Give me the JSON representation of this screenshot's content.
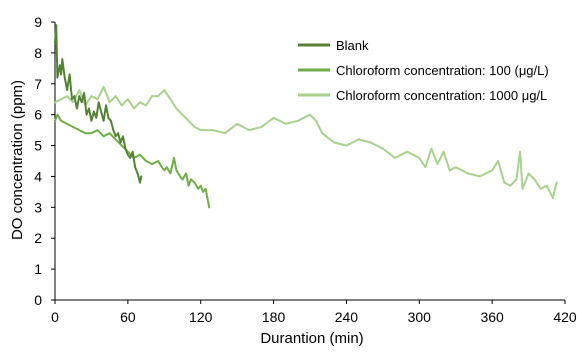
{
  "chart_data": {
    "type": "line",
    "xlabel": "Durantion (min)",
    "ylabel": "DO concentration (ppm)",
    "xlim": [
      0,
      420
    ],
    "ylim": [
      0,
      9
    ],
    "xticks": [
      0,
      60,
      120,
      180,
      240,
      300,
      360,
      420
    ],
    "yticks": [
      0,
      1,
      2,
      3,
      4,
      5,
      6,
      7,
      8,
      9
    ],
    "grid": false,
    "legend_position": "top-right",
    "series": [
      {
        "name": "Blank",
        "color": "#548235",
        "x": [
          0,
          1,
          2,
          3,
          4,
          5,
          6,
          7,
          8,
          10,
          12,
          14,
          16,
          18,
          20,
          22,
          24,
          26,
          28,
          30,
          32,
          34,
          36,
          38,
          40,
          42,
          44,
          46,
          48,
          50,
          52,
          54,
          56,
          58,
          60,
          62,
          64,
          66,
          68,
          70,
          71
        ],
        "y": [
          8.3,
          8.9,
          7.2,
          7.4,
          7.6,
          7.3,
          7.8,
          7.5,
          7.2,
          6.8,
          7.3,
          6.5,
          6.6,
          6.2,
          6.6,
          6.4,
          6.7,
          6.0,
          6.2,
          5.8,
          6.1,
          5.9,
          6.4,
          6.1,
          5.8,
          6.3,
          5.9,
          5.8,
          5.5,
          5.3,
          5.4,
          5.1,
          5.3,
          4.9,
          4.7,
          4.6,
          4.8,
          4.3,
          4.1,
          3.8,
          4.0
        ]
      },
      {
        "name": "Chloroform concentration: 100 (μg/L)",
        "color": "#70AD47",
        "x": [
          0,
          2,
          5,
          10,
          15,
          20,
          25,
          30,
          35,
          40,
          45,
          50,
          55,
          60,
          65,
          70,
          75,
          80,
          85,
          88,
          90,
          92,
          95,
          98,
          100,
          103,
          105,
          108,
          110,
          112,
          115,
          118,
          120,
          122,
          124,
          126,
          127
        ],
        "y": [
          5.8,
          6.0,
          5.8,
          5.7,
          5.6,
          5.5,
          5.4,
          5.4,
          5.5,
          5.3,
          5.4,
          5.2,
          5.0,
          4.8,
          4.6,
          4.7,
          4.5,
          4.4,
          4.5,
          4.3,
          4.2,
          4.3,
          4.1,
          4.6,
          4.2,
          4.0,
          3.9,
          4.1,
          3.7,
          3.9,
          3.8,
          3.6,
          3.7,
          3.5,
          3.6,
          3.2,
          3.0
        ]
      },
      {
        "name": "Chloroform concentration: 1000 μg/L",
        "color": "#A9D18E",
        "x": [
          0,
          5,
          10,
          15,
          20,
          25,
          30,
          35,
          40,
          45,
          50,
          55,
          60,
          65,
          70,
          75,
          80,
          85,
          90,
          95,
          100,
          105,
          110,
          115,
          120,
          130,
          140,
          150,
          160,
          170,
          180,
          190,
          200,
          210,
          215,
          220,
          230,
          240,
          250,
          260,
          270,
          280,
          290,
          300,
          305,
          310,
          315,
          320,
          325,
          330,
          340,
          350,
          360,
          365,
          370,
          375,
          380,
          383,
          385,
          390,
          395,
          400,
          405,
          410,
          413
        ],
        "y": [
          6.4,
          6.5,
          6.6,
          6.4,
          6.8,
          6.3,
          6.6,
          6.5,
          6.9,
          6.4,
          6.6,
          6.3,
          6.5,
          6.2,
          6.4,
          6.3,
          6.6,
          6.6,
          6.8,
          6.5,
          6.2,
          6.0,
          5.8,
          5.6,
          5.5,
          5.5,
          5.4,
          5.7,
          5.5,
          5.6,
          5.9,
          5.7,
          5.8,
          6.0,
          5.8,
          5.4,
          5.1,
          5.0,
          5.2,
          5.1,
          4.9,
          4.6,
          4.8,
          4.6,
          4.3,
          4.9,
          4.4,
          4.8,
          4.2,
          4.3,
          4.1,
          4.0,
          4.2,
          4.5,
          3.8,
          3.7,
          3.9,
          4.8,
          3.6,
          4.1,
          3.9,
          3.6,
          3.7,
          3.3,
          3.8
        ]
      }
    ]
  }
}
